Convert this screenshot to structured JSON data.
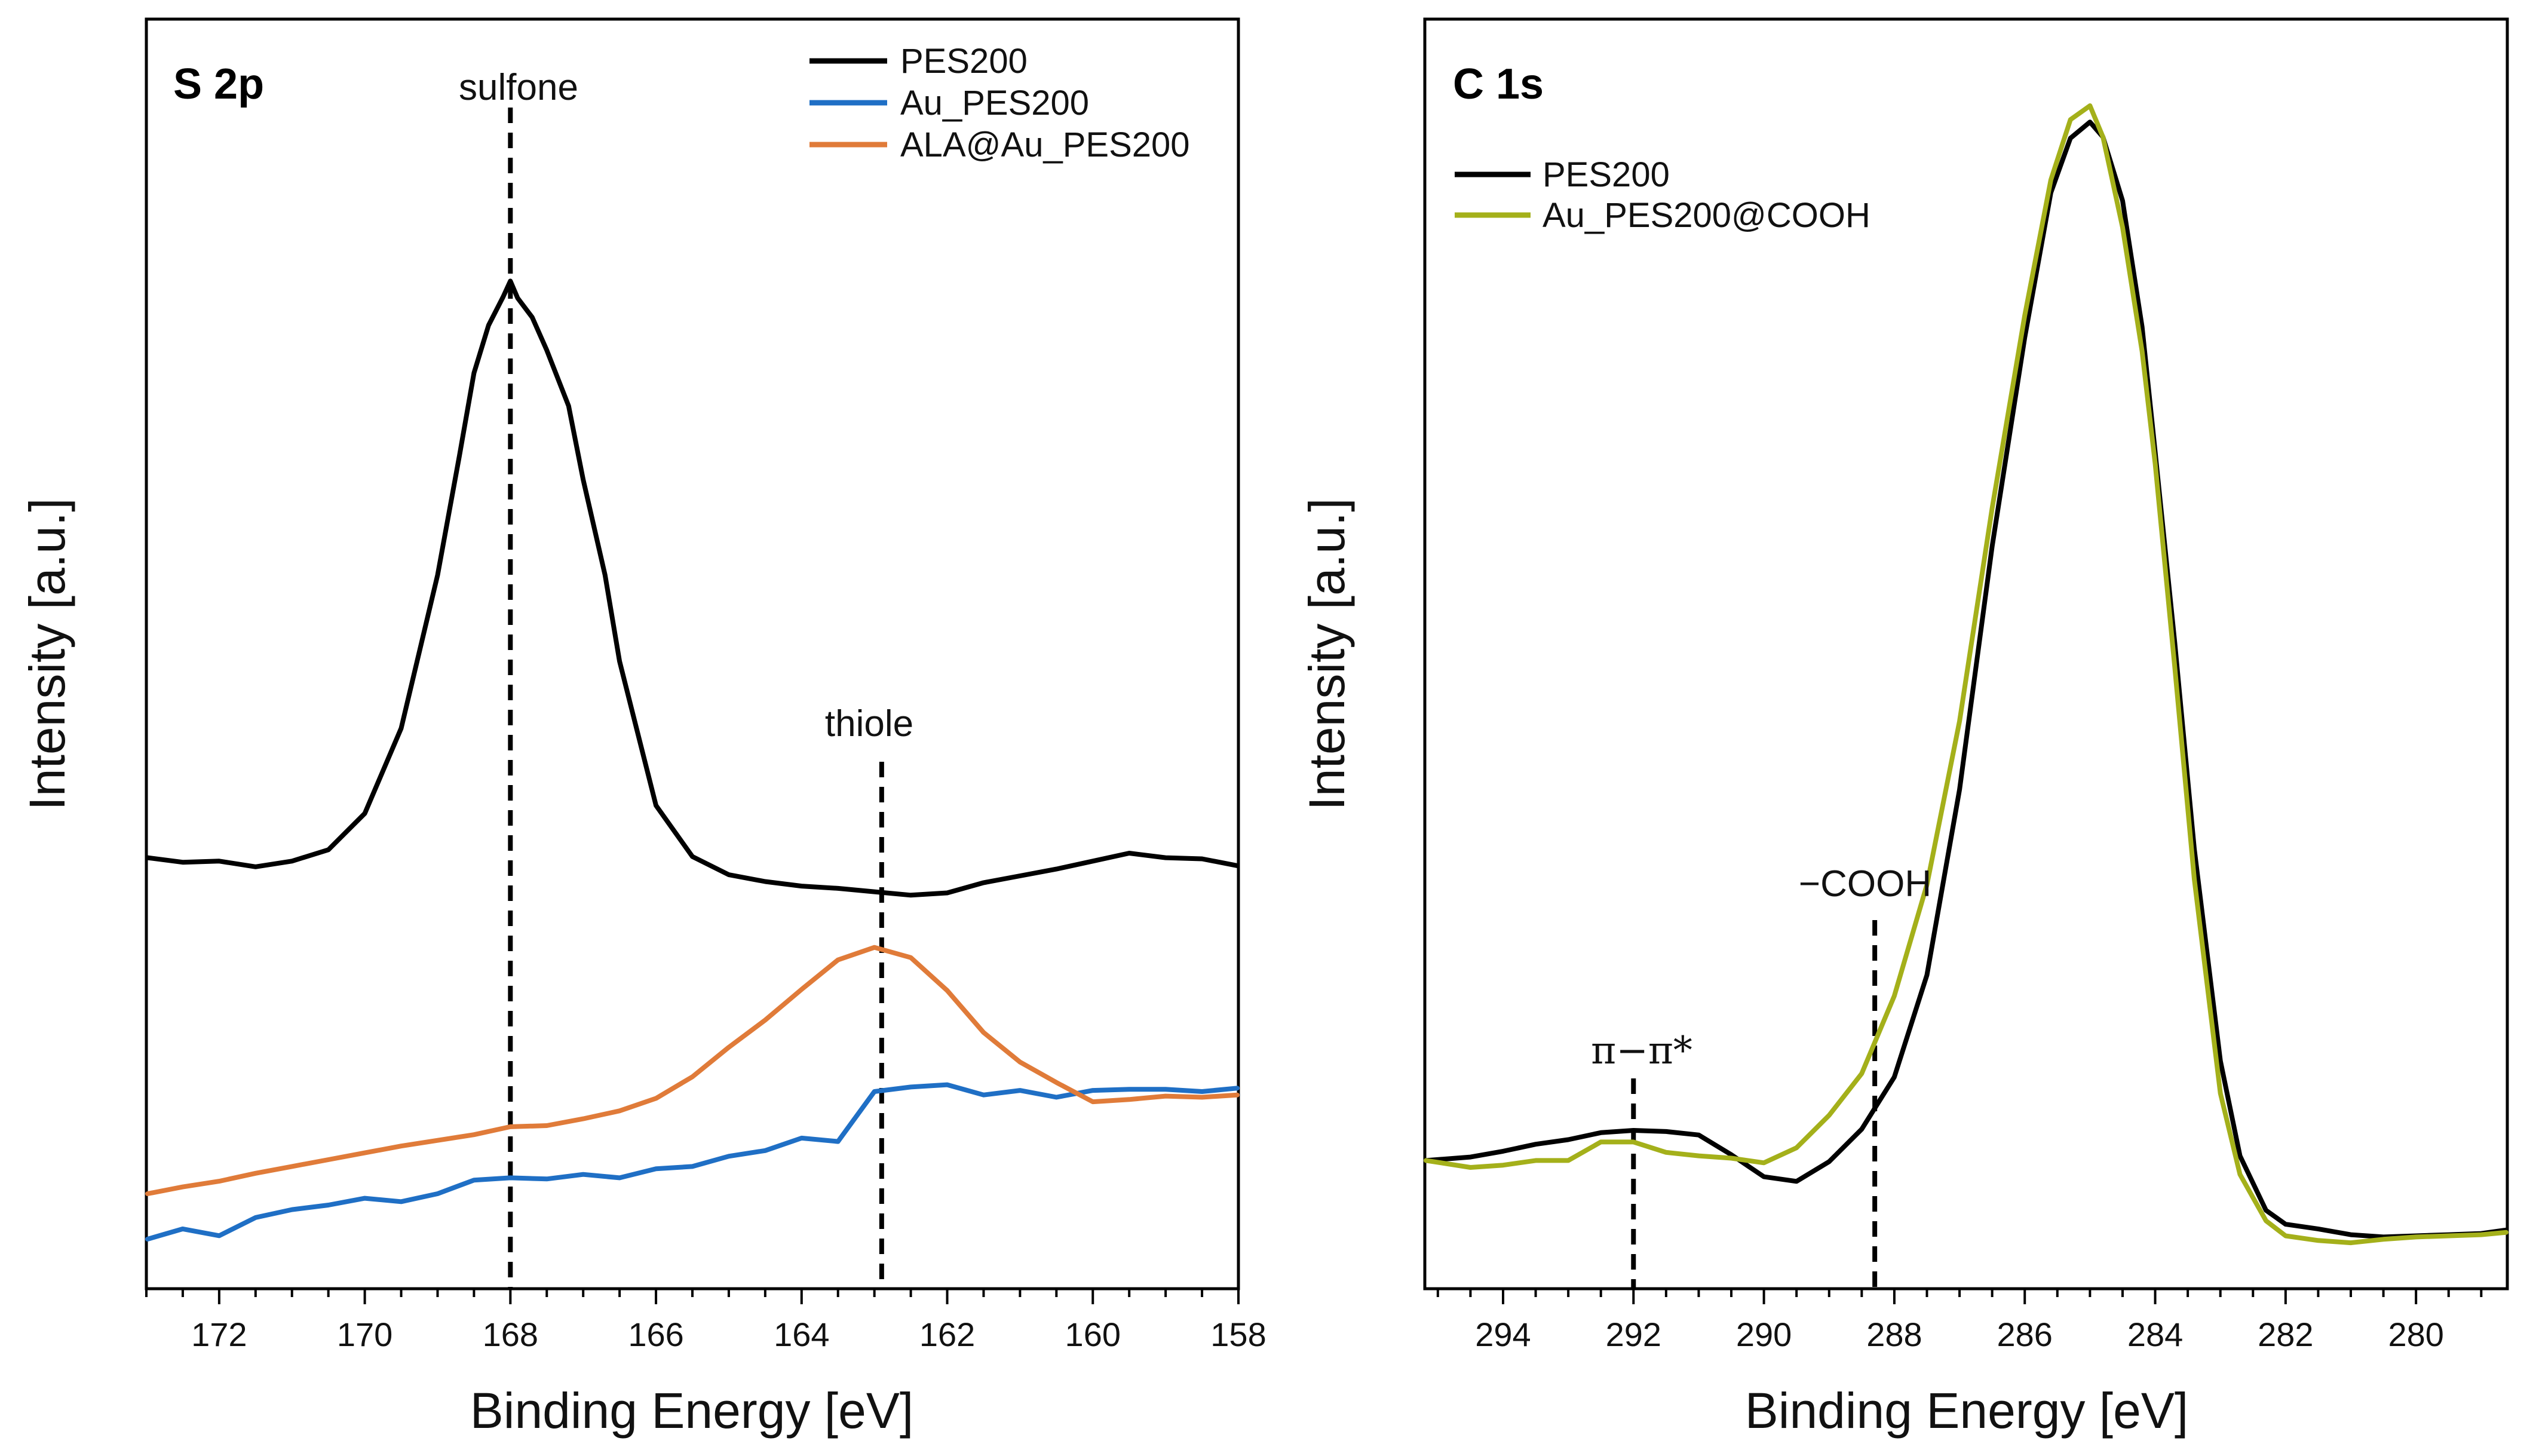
{
  "chart_data": [
    {
      "type": "line",
      "title": "S 2p",
      "xlabel": "Binding Energy [eV]",
      "ylabel": "Intensity [a.u.]",
      "xlim": [
        173.0,
        158.0
      ],
      "x_reversed": true,
      "ylim": [
        0,
        100
      ],
      "ytick_labels": false,
      "xticks": [
        172,
        170,
        168,
        166,
        164,
        162,
        160,
        158
      ],
      "xtick_labels": [
        "172",
        "170",
        "168",
        "166",
        "164",
        "162",
        "160",
        "158"
      ],
      "legend_position": "top-right",
      "series": [
        {
          "name": "PES200",
          "color": "#000000",
          "x": [
            173.0,
            172.5,
            172.0,
            171.5,
            171.0,
            170.5,
            170.0,
            169.5,
            169.0,
            168.7,
            168.5,
            168.3,
            168.1,
            168.0,
            167.9,
            167.7,
            167.5,
            167.2,
            167.0,
            166.7,
            166.5,
            166.0,
            165.5,
            165.0,
            164.5,
            164.0,
            163.5,
            163.0,
            162.5,
            162.0,
            161.5,
            161.0,
            160.5,
            160.0,
            159.5,
            159.0,
            158.5,
            158.0
          ],
          "y": [
            37.6,
            37.2,
            37.3,
            36.8,
            37.3,
            38.3,
            41.5,
            49.0,
            62.5,
            73.0,
            80.3,
            84.5,
            87.0,
            88.4,
            86.9,
            85.2,
            82.3,
            77.4,
            70.9,
            62.5,
            54.9,
            42.2,
            37.7,
            36.1,
            35.5,
            35.1,
            34.9,
            34.6,
            34.3,
            34.5,
            35.4,
            36.0,
            36.6,
            37.3,
            38.0,
            37.6,
            37.5,
            36.9
          ]
        },
        {
          "name": "Au_PES200",
          "color": "#1f6fc5",
          "x": [
            173.0,
            172.5,
            172.0,
            171.5,
            171.0,
            170.5,
            170.0,
            169.5,
            169.0,
            168.5,
            168.0,
            167.5,
            167.0,
            166.5,
            166.0,
            165.5,
            165.0,
            164.5,
            164.0,
            163.5,
            163.0,
            162.5,
            162.0,
            161.5,
            161.0,
            160.5,
            160.0,
            159.5,
            159.0,
            158.5,
            158.0
          ],
          "y": [
            4.0,
            4.9,
            4.3,
            5.9,
            6.6,
            7.0,
            7.6,
            7.3,
            8.0,
            9.2,
            9.4,
            9.3,
            9.7,
            9.4,
            10.2,
            10.4,
            11.3,
            11.8,
            12.9,
            12.6,
            17.0,
            17.4,
            17.6,
            16.7,
            17.1,
            16.5,
            17.1,
            17.2,
            17.2,
            17.0,
            17.3
          ]
        },
        {
          "name": "ALA@Au_PES200",
          "color": "#e07b39",
          "x": [
            173.0,
            172.5,
            172.0,
            171.5,
            171.0,
            170.5,
            170.0,
            169.5,
            169.0,
            168.5,
            168.0,
            167.5,
            167.0,
            166.5,
            166.0,
            165.5,
            165.0,
            164.5,
            164.0,
            163.5,
            163.0,
            162.5,
            162.0,
            161.5,
            161.0,
            160.5,
            160.0,
            159.5,
            159.0,
            158.5,
            158.0
          ],
          "y": [
            8.0,
            8.6,
            9.1,
            9.8,
            10.4,
            11.0,
            11.6,
            12.2,
            12.7,
            13.2,
            13.9,
            14.0,
            14.6,
            15.3,
            16.4,
            18.3,
            20.9,
            23.3,
            26.0,
            28.6,
            29.7,
            28.8,
            25.9,
            22.2,
            19.6,
            17.8,
            16.1,
            16.3,
            16.6,
            16.5,
            16.7
          ]
        }
      ],
      "annotations": [
        {
          "text": "sulfone",
          "x": 168.0
        },
        {
          "text": "thiole",
          "x": 162.9
        }
      ]
    },
    {
      "type": "line",
      "title": "C 1s",
      "xlabel": "Binding Energy [eV]",
      "ylabel": "Intensity [a.u.]",
      "xlim": [
        295.2,
        278.6
      ],
      "x_reversed": true,
      "ylim": [
        0,
        100
      ],
      "ytick_labels": false,
      "xticks": [
        294,
        292,
        290,
        288,
        286,
        284,
        282,
        280
      ],
      "xtick_labels": [
        "294",
        "292",
        "290",
        "288",
        "286",
        "284",
        "282",
        "280"
      ],
      "legend_position": "top-left",
      "series": [
        {
          "name": "PES200",
          "color": "#000000",
          "x": [
            295.2,
            294.5,
            294.0,
            293.5,
            293.0,
            292.5,
            292.0,
            291.5,
            291.0,
            290.5,
            290.0,
            289.5,
            289.0,
            288.5,
            288.0,
            287.5,
            287.0,
            286.5,
            286.0,
            285.6,
            285.3,
            285.0,
            284.8,
            284.5,
            284.2,
            284.0,
            283.7,
            283.4,
            283.0,
            282.7,
            282.3,
            282.0,
            281.5,
            281.0,
            280.5,
            280.0,
            279.5,
            279.0,
            278.6
          ],
          "y": [
            9.0,
            9.3,
            9.8,
            10.4,
            10.8,
            11.4,
            11.6,
            11.5,
            11.2,
            9.5,
            7.6,
            7.2,
            8.9,
            11.7,
            16.2,
            25.0,
            41.0,
            62.0,
            80.0,
            92.5,
            97.2,
            98.6,
            97.3,
            91.8,
            80.9,
            70.1,
            53.7,
            35.9,
            17.6,
            9.4,
            4.7,
            3.5,
            3.1,
            2.6,
            2.4,
            2.5,
            2.6,
            2.7,
            3.0
          ]
        },
        {
          "name": "Au_PES200@COOH",
          "color": "#a4b01a",
          "x": [
            295.2,
            294.5,
            294.0,
            293.5,
            293.0,
            292.5,
            292.0,
            291.5,
            291.0,
            290.5,
            290.0,
            289.5,
            289.0,
            288.5,
            288.0,
            287.5,
            287.0,
            286.5,
            286.0,
            285.6,
            285.3,
            285.0,
            284.8,
            284.5,
            284.2,
            284.0,
            283.7,
            283.4,
            283.0,
            282.7,
            282.3,
            282.0,
            281.5,
            281.0,
            280.5,
            280.0,
            279.5,
            279.0,
            278.6
          ],
          "y": [
            9.0,
            8.4,
            8.6,
            9.0,
            9.0,
            10.6,
            10.6,
            9.7,
            9.4,
            9.2,
            8.8,
            10.1,
            12.9,
            16.5,
            23.2,
            32.8,
            46.9,
            65.3,
            81.9,
            93.6,
            98.8,
            100.0,
            97.3,
            89.5,
            78.8,
            69.1,
            51.6,
            33.3,
            14.8,
            7.8,
            3.8,
            2.5,
            2.1,
            1.9,
            2.2,
            2.4,
            2.5,
            2.6,
            2.8
          ]
        }
      ],
      "annotations": [
        {
          "text": "π−π*",
          "x": 292.0
        },
        {
          "text": "−COOH",
          "x": 288.3
        }
      ]
    }
  ]
}
